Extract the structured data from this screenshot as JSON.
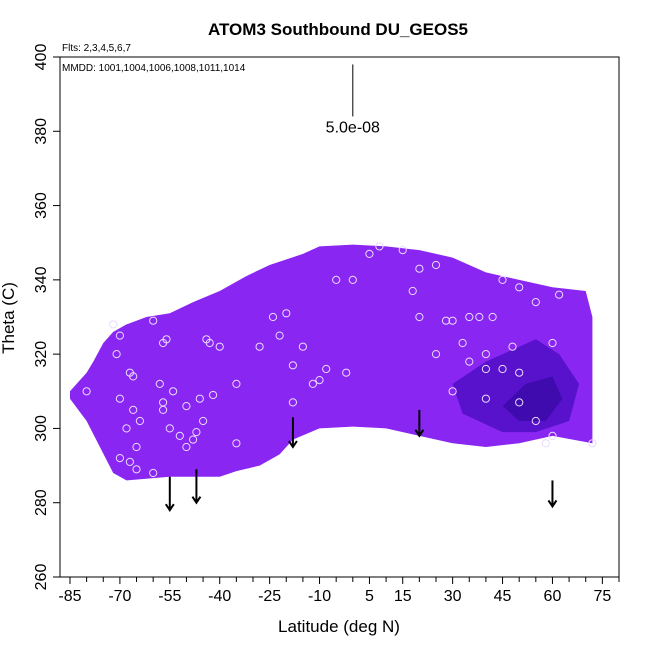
{
  "chart_data": {
    "type": "scatter",
    "title": "ATOM3 Southbound DU_GEOS5",
    "flights_label": "Flts: 2,3,4,5,6,7",
    "mmdd_label": "MMDD: 1001,1004,1006,1008,1011,1014",
    "xlabel": "Latitude (deg N)",
    "ylabel": "Theta (C)",
    "xlim": [
      -88,
      80
    ],
    "ylim": [
      260,
      400
    ],
    "x_ticks": [
      -85,
      -70,
      -55,
      -40,
      -25,
      -10,
      5,
      15,
      30,
      45,
      60,
      75
    ],
    "y_ticks": [
      260,
      280,
      300,
      320,
      340,
      360,
      380,
      400
    ],
    "scale_label": "5.0e-08",
    "scale_bar": {
      "x": 0,
      "y_top": 398,
      "y_bottom": 384
    },
    "field_colors": {
      "light": "#8a26f2",
      "mid": "#7a1ae0",
      "dark": "#4f0fc4",
      "darkest": "#3a0aa8"
    },
    "field_boundary": [
      [
        -85,
        310
      ],
      [
        -80,
        315
      ],
      [
        -78,
        318
      ],
      [
        -75,
        323
      ],
      [
        -72,
        326
      ],
      [
        -68,
        328
      ],
      [
        -62,
        330
      ],
      [
        -55,
        331
      ],
      [
        -48,
        334
      ],
      [
        -40,
        337
      ],
      [
        -32,
        341
      ],
      [
        -25,
        344
      ],
      [
        -15,
        347
      ],
      [
        -10,
        349
      ],
      [
        0,
        349.5
      ],
      [
        10,
        349
      ],
      [
        20,
        348
      ],
      [
        30,
        346
      ],
      [
        40,
        342
      ],
      [
        50,
        340
      ],
      [
        60,
        338
      ],
      [
        70,
        337
      ],
      [
        72,
        330
      ],
      [
        72,
        296
      ],
      [
        60,
        298
      ],
      [
        50,
        296
      ],
      [
        40,
        295
      ],
      [
        30,
        296
      ],
      [
        20,
        298
      ],
      [
        10,
        300
      ],
      [
        0,
        300.5
      ],
      [
        -10,
        300
      ],
      [
        -18,
        297
      ],
      [
        -22,
        293
      ],
      [
        -28,
        290
      ],
      [
        -35,
        288.5
      ],
      [
        -40,
        287
      ],
      [
        -55,
        287
      ],
      [
        -68,
        286
      ],
      [
        -72,
        288
      ],
      [
        -76,
        295
      ],
      [
        -80,
        302
      ],
      [
        -85,
        308
      ]
    ],
    "dark_region": [
      [
        30,
        312
      ],
      [
        40,
        318
      ],
      [
        55,
        324
      ],
      [
        62,
        320
      ],
      [
        68,
        312
      ],
      [
        65,
        302
      ],
      [
        55,
        299
      ],
      [
        45,
        299
      ],
      [
        33,
        304
      ]
    ],
    "darkest_region": [
      [
        45,
        306
      ],
      [
        52,
        312
      ],
      [
        60,
        314
      ],
      [
        63,
        308
      ],
      [
        58,
        302
      ],
      [
        50,
        302
      ]
    ],
    "points": [
      [
        -80,
        310
      ],
      [
        -72,
        328
      ],
      [
        -70,
        325
      ],
      [
        -71,
        320
      ],
      [
        -67,
        315
      ],
      [
        -66,
        314
      ],
      [
        -70,
        308
      ],
      [
        -66,
        305
      ],
      [
        -64,
        302
      ],
      [
        -68,
        300
      ],
      [
        -65,
        295
      ],
      [
        -70,
        292
      ],
      [
        -67,
        291
      ],
      [
        -65,
        289
      ],
      [
        -60,
        288
      ],
      [
        -60,
        329
      ],
      [
        -57,
        323
      ],
      [
        -56,
        324
      ],
      [
        -58,
        312
      ],
      [
        -57,
        307
      ],
      [
        -54,
        310
      ],
      [
        -57,
        305
      ],
      [
        -55,
        300
      ],
      [
        -52,
        298
      ],
      [
        -50,
        295
      ],
      [
        -48,
        297
      ],
      [
        -45,
        302
      ],
      [
        -47,
        299
      ],
      [
        -50,
        306
      ],
      [
        -46,
        308
      ],
      [
        -42,
        309
      ],
      [
        -40,
        322
      ],
      [
        -44,
        324
      ],
      [
        -43,
        323
      ],
      [
        -35,
        312
      ],
      [
        -35,
        296
      ],
      [
        -28,
        322
      ],
      [
        -24,
        330
      ],
      [
        -20,
        331
      ],
      [
        -22,
        325
      ],
      [
        -18,
        317
      ],
      [
        -15,
        322
      ],
      [
        -12,
        312
      ],
      [
        -8,
        316
      ],
      [
        -18,
        307
      ],
      [
        -10,
        313
      ],
      [
        -2,
        315
      ],
      [
        -5,
        340
      ],
      [
        0,
        340
      ],
      [
        5,
        347
      ],
      [
        8,
        349
      ],
      [
        15,
        348
      ],
      [
        20,
        343
      ],
      [
        18,
        337
      ],
      [
        25,
        344
      ],
      [
        28,
        329
      ],
      [
        30,
        329
      ],
      [
        35,
        330
      ],
      [
        38,
        330
      ],
      [
        33,
        323
      ],
      [
        35,
        318
      ],
      [
        40,
        316
      ],
      [
        45,
        316
      ],
      [
        50,
        315
      ],
      [
        20,
        330
      ],
      [
        25,
        320
      ],
      [
        30,
        310
      ],
      [
        40,
        308
      ],
      [
        40,
        320
      ],
      [
        42,
        330
      ],
      [
        45,
        340
      ],
      [
        50,
        338
      ],
      [
        55,
        334
      ],
      [
        48,
        322
      ],
      [
        50,
        307
      ],
      [
        55,
        302
      ],
      [
        60,
        298
      ],
      [
        58,
        296
      ],
      [
        62,
        336
      ],
      [
        72,
        296
      ],
      [
        60,
        323
      ]
    ],
    "arrows": [
      {
        "x": -55,
        "y_top": 287,
        "y_bottom": 278
      },
      {
        "x": -47,
        "y_top": 289,
        "y_bottom": 280
      },
      {
        "x": -18,
        "y_top": 303,
        "y_bottom": 295
      },
      {
        "x": 20,
        "y_top": 305,
        "y_bottom": 298
      },
      {
        "x": 60,
        "y_top": 286,
        "y_bottom": 279
      }
    ]
  }
}
